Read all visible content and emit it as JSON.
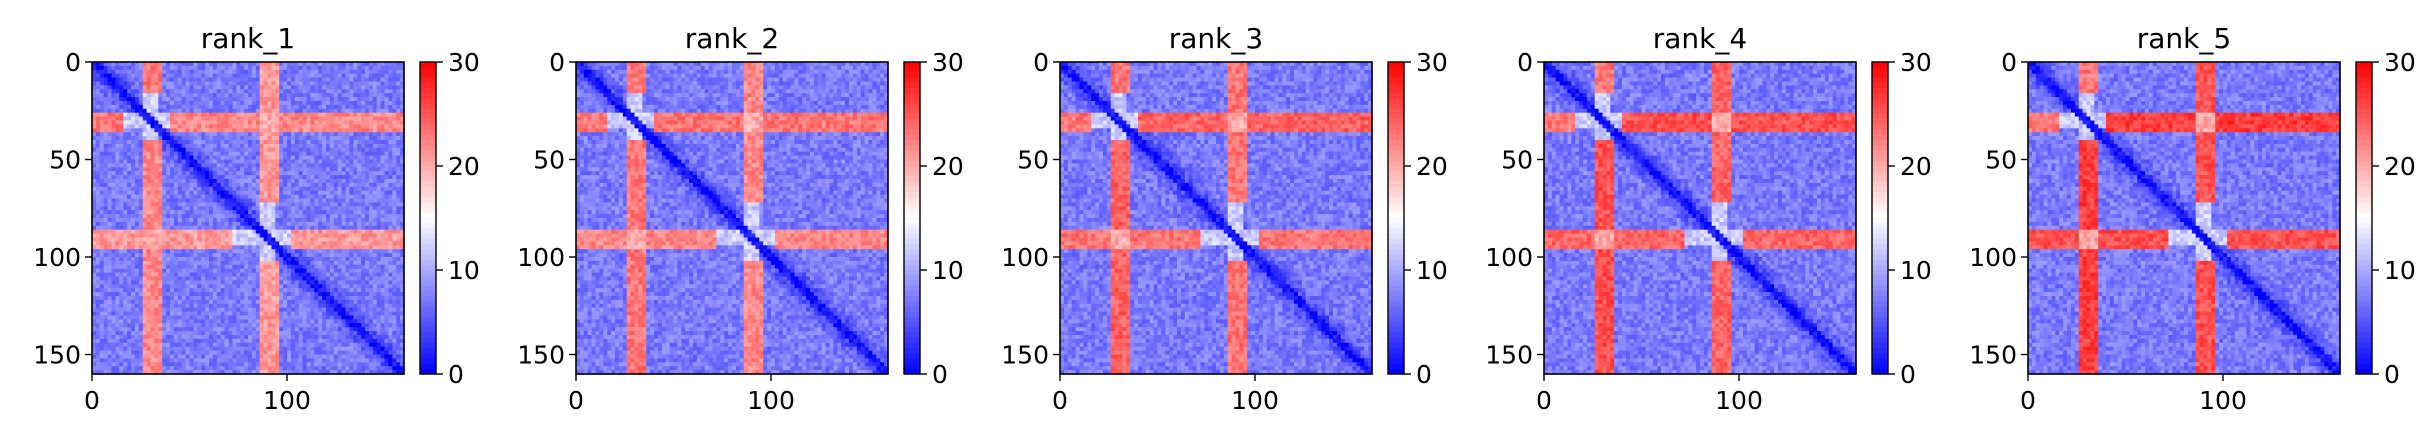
{
  "chart_data": [
    {
      "type": "heatmap",
      "title": "rank_1",
      "rank": 1,
      "matrix_size": 160,
      "xlim": [
        0,
        160
      ],
      "ylim": [
        160,
        0
      ],
      "x_ticks": [
        0,
        100
      ],
      "y_ticks": [
        0,
        50,
        100,
        150
      ],
      "colorbar": {
        "range": [
          0,
          30
        ],
        "ticks": [
          0,
          10,
          20,
          30
        ],
        "colormap": "bwr"
      }
    },
    {
      "type": "heatmap",
      "title": "rank_2",
      "rank": 2,
      "matrix_size": 160,
      "xlim": [
        0,
        160
      ],
      "ylim": [
        160,
        0
      ],
      "x_ticks": [
        0,
        100
      ],
      "y_ticks": [
        0,
        50,
        100,
        150
      ],
      "colorbar": {
        "range": [
          0,
          30
        ],
        "ticks": [
          0,
          10,
          20,
          30
        ],
        "colormap": "bwr"
      }
    },
    {
      "type": "heatmap",
      "title": "rank_3",
      "rank": 3,
      "matrix_size": 160,
      "xlim": [
        0,
        160
      ],
      "ylim": [
        160,
        0
      ],
      "x_ticks": [
        0,
        100
      ],
      "y_ticks": [
        0,
        50,
        100,
        150
      ],
      "colorbar": {
        "range": [
          0,
          30
        ],
        "ticks": [
          0,
          10,
          20,
          30
        ],
        "colormap": "bwr"
      }
    },
    {
      "type": "heatmap",
      "title": "rank_4",
      "rank": 4,
      "matrix_size": 160,
      "xlim": [
        0,
        160
      ],
      "ylim": [
        160,
        0
      ],
      "x_ticks": [
        0,
        100
      ],
      "y_ticks": [
        0,
        50,
        100,
        150
      ],
      "colorbar": {
        "range": [
          0,
          30
        ],
        "ticks": [
          0,
          10,
          20,
          30
        ],
        "colormap": "bwr"
      }
    },
    {
      "type": "heatmap",
      "title": "rank_5",
      "rank": 5,
      "matrix_size": 160,
      "xlim": [
        0,
        160
      ],
      "ylim": [
        160,
        0
      ],
      "x_ticks": [
        0,
        100
      ],
      "y_ticks": [
        0,
        50,
        100,
        150
      ],
      "colorbar": {
        "range": [
          0,
          30
        ],
        "ticks": [
          0,
          10,
          20,
          30
        ],
        "colormap": "bwr"
      }
    }
  ],
  "colors": {
    "low": "#0000ff",
    "mid": "#ffffff",
    "high": "#ff0000",
    "axis": "#000000"
  }
}
